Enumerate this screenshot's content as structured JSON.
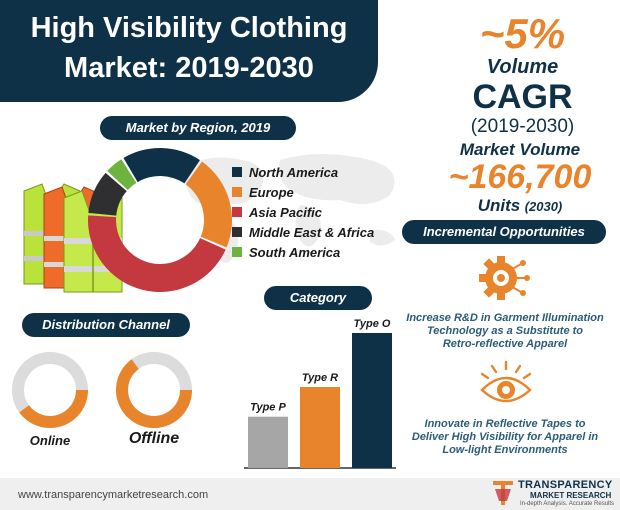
{
  "title": {
    "line1": "High Visibility Clothing",
    "line2": "Market: 2019-2030"
  },
  "stats": {
    "cagr_value": "~5%",
    "cagr_type": "Volume",
    "cagr_label": "CAGR",
    "cagr_period": "(2019-2030)",
    "volume_label": "Market Volume",
    "volume_value": "~166,700",
    "volume_unit": "Units",
    "volume_year": "(2030)"
  },
  "region": {
    "header": "Market by Region, 2019"
  },
  "distribution": {
    "header": "Distribution Channel",
    "online_label": "Online",
    "offline_label": "Offline"
  },
  "category": {
    "header": "Category"
  },
  "opportunities": {
    "header": "Incremental Opportunities",
    "item1": {
      "icon": "gear-icon",
      "line1": "Increase R&D in Garment Illumination",
      "line2": "Technology as a Substitute to",
      "line3": "Retro-reflective Apparel"
    },
    "item2": {
      "icon": "eye-icon",
      "line1": "Innovate in Reflective Tapes to",
      "line2": "Deliver High Visibility for Apparel in",
      "line3": "Low-light Environments"
    }
  },
  "footer": {
    "url": "www.transparencymarketresearch.com",
    "brand_line1": "TRANSPARENCY",
    "brand_line2": "MARKET RESEARCH",
    "tagline": "In-depth Analysis. Accurate Results"
  },
  "colors": {
    "navy": "#0f3148",
    "orange": "#e8842c",
    "red": "#c4393f",
    "dark": "#2f2f31",
    "green": "#6cb33f",
    "gray": "#a6a6a6",
    "ring_bg": "#dcdcdc"
  },
  "chart_data": [
    {
      "type": "pie",
      "title": "Market by Region, 2019",
      "categories": [
        "North America",
        "Europe",
        "Asia Pacific",
        "Middle East & Africa",
        "South America"
      ],
      "values": [
        16,
        19,
        39,
        9,
        4
      ],
      "colors": [
        "#0f3148",
        "#e8842c",
        "#c4393f",
        "#2f2f31",
        "#6cb33f"
      ]
    },
    {
      "type": "pie",
      "title": "Distribution Channel",
      "categories": [
        "Online",
        "Offline"
      ],
      "values": [
        40,
        65
      ]
    },
    {
      "type": "bar",
      "title": "Category",
      "categories": [
        "Type P",
        "Type R",
        "Type O"
      ],
      "values": [
        38,
        60,
        100
      ],
      "ylim": [
        0,
        100
      ],
      "colors": [
        "#a6a6a6",
        "#e8842c",
        "#0f3148"
      ]
    }
  ]
}
